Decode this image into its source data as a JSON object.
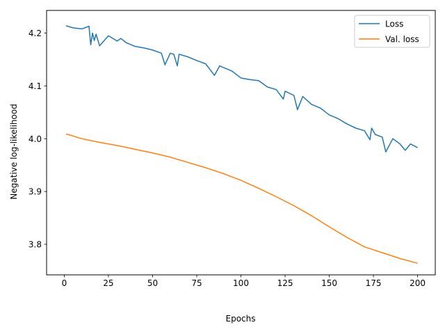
{
  "chart_data": {
    "type": "line",
    "xlabel": "Epochs",
    "ylabel": "Negative log-likelihood",
    "xlim": [
      -10,
      210
    ],
    "ylim": [
      3.742,
      4.243
    ],
    "xticks": [
      0,
      25,
      50,
      75,
      100,
      125,
      150,
      175,
      200
    ],
    "xtick_labels": [
      "0",
      "25",
      "50",
      "75",
      "100",
      "125",
      "150",
      "175",
      "200"
    ],
    "yticks": [
      3.8,
      3.9,
      4.0,
      4.1,
      4.2
    ],
    "ytick_labels": [
      "3.8",
      "3.9",
      "4.0",
      "4.1",
      "4.2"
    ],
    "grid": false,
    "legend_position": "top-right",
    "series": [
      {
        "name": "Loss",
        "color": "#1f77b4",
        "x": [
          1,
          5,
          10,
          14,
          15,
          16,
          17,
          18,
          20,
          25,
          30,
          32,
          35,
          40,
          45,
          50,
          55,
          57,
          60,
          62,
          64,
          65,
          70,
          75,
          80,
          85,
          88,
          90,
          95,
          100,
          105,
          110,
          115,
          120,
          124,
          125,
          130,
          132,
          135,
          140,
          145,
          150,
          155,
          160,
          165,
          170,
          173,
          174,
          176,
          180,
          182,
          186,
          190,
          193,
          196,
          200
        ],
        "y": [
          4.214,
          4.21,
          4.208,
          4.213,
          4.178,
          4.2,
          4.186,
          4.198,
          4.176,
          4.195,
          4.185,
          4.19,
          4.182,
          4.175,
          4.172,
          4.168,
          4.162,
          4.14,
          4.162,
          4.16,
          4.138,
          4.16,
          4.155,
          4.148,
          4.142,
          4.12,
          4.138,
          4.135,
          4.128,
          4.115,
          4.112,
          4.11,
          4.098,
          4.093,
          4.075,
          4.09,
          4.082,
          4.055,
          4.08,
          4.065,
          4.058,
          4.045,
          4.038,
          4.028,
          4.02,
          4.015,
          3.998,
          4.02,
          4.008,
          4.003,
          3.975,
          4.0,
          3.99,
          3.978,
          3.99,
          3.983
        ]
      },
      {
        "name": "Val. loss",
        "color": "#ff7f0e",
        "x": [
          1,
          10,
          20,
          30,
          40,
          50,
          60,
          70,
          80,
          90,
          100,
          110,
          120,
          130,
          140,
          150,
          160,
          170,
          180,
          190,
          200
        ],
        "y": [
          4.009,
          4.0,
          3.993,
          3.987,
          3.98,
          3.973,
          3.965,
          3.955,
          3.945,
          3.934,
          3.921,
          3.906,
          3.89,
          3.873,
          3.854,
          3.833,
          3.813,
          3.795,
          3.784,
          3.773,
          3.764
        ]
      }
    ]
  }
}
